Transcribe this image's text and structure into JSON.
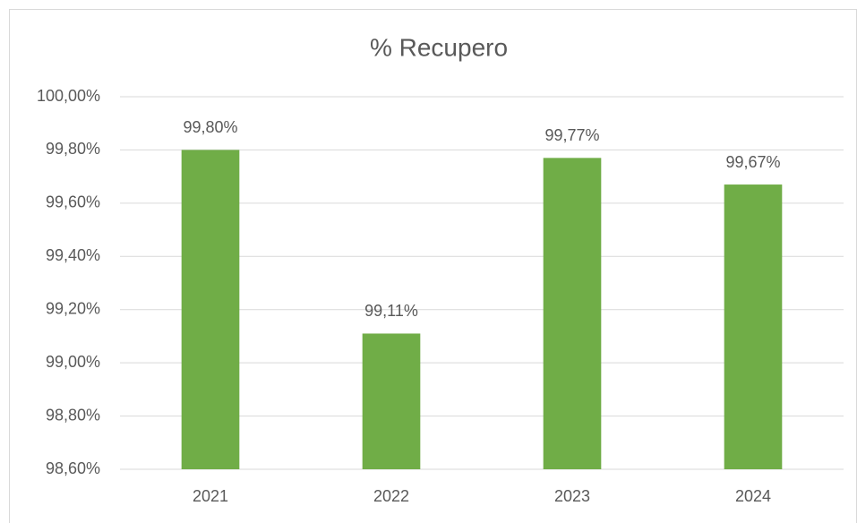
{
  "chart_data": {
    "type": "bar",
    "title": "% Recupero",
    "categories": [
      "2021",
      "2022",
      "2023",
      "2024"
    ],
    "values": [
      99.8,
      99.11,
      99.77,
      99.67
    ],
    "value_labels": [
      "99,80%",
      "99,11%",
      "99,77%",
      "99,67%"
    ],
    "color": "#70ad47",
    "ylim": [
      98.6,
      100
    ],
    "yticks": [
      {
        "value": 98.6,
        "label": "98,60%"
      },
      {
        "value": 98.8,
        "label": "98,80%"
      },
      {
        "value": 99.0,
        "label": "99,00%"
      },
      {
        "value": 99.2,
        "label": "99,20%"
      },
      {
        "value": 99.4,
        "label": "99,40%"
      },
      {
        "value": 99.6,
        "label": "99,60%"
      },
      {
        "value": 99.8,
        "label": "99,80%"
      },
      {
        "value": 100.0,
        "label": "100,00%"
      }
    ],
    "grid": true
  }
}
